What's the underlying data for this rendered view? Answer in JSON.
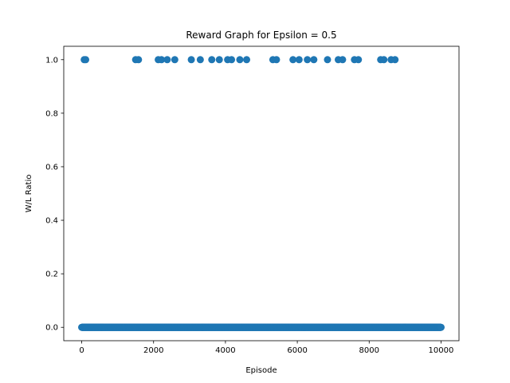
{
  "chart_data": {
    "type": "scatter",
    "title": "Reward Graph for Epsilon = 0.5",
    "xlabel": "Episode",
    "ylabel": "W/L Ratio",
    "xlim": [
      -500,
      10500
    ],
    "ylim": [
      -0.05,
      1.05
    ],
    "x_ticks": [
      0,
      2000,
      4000,
      6000,
      8000,
      10000
    ],
    "x_tick_labels": [
      "0",
      "2000",
      "4000",
      "6000",
      "8000",
      "10000"
    ],
    "y_ticks": [
      0.0,
      0.2,
      0.4,
      0.6,
      0.8,
      1.0
    ],
    "y_tick_labels": [
      "0.0",
      "0.2",
      "0.4",
      "0.6",
      "0.8",
      "1.0"
    ],
    "grid": false,
    "legend": "none",
    "marker_color": "#1f77b4",
    "series": [
      {
        "x_range": [
          0,
          10000
        ],
        "y": 0.0,
        "note_every_episode": true
      },
      {
        "x": [
          70,
          110,
          1500,
          1580,
          2130,
          2220,
          2380,
          2590,
          3050,
          3300,
          3620,
          3830,
          4060,
          4170,
          4400,
          4590,
          5320,
          5420,
          5880,
          6050,
          6280,
          6460,
          6840,
          7140,
          7260,
          7590,
          7700,
          8320,
          8410,
          8610,
          8720
        ],
        "y": 1.0
      }
    ]
  }
}
